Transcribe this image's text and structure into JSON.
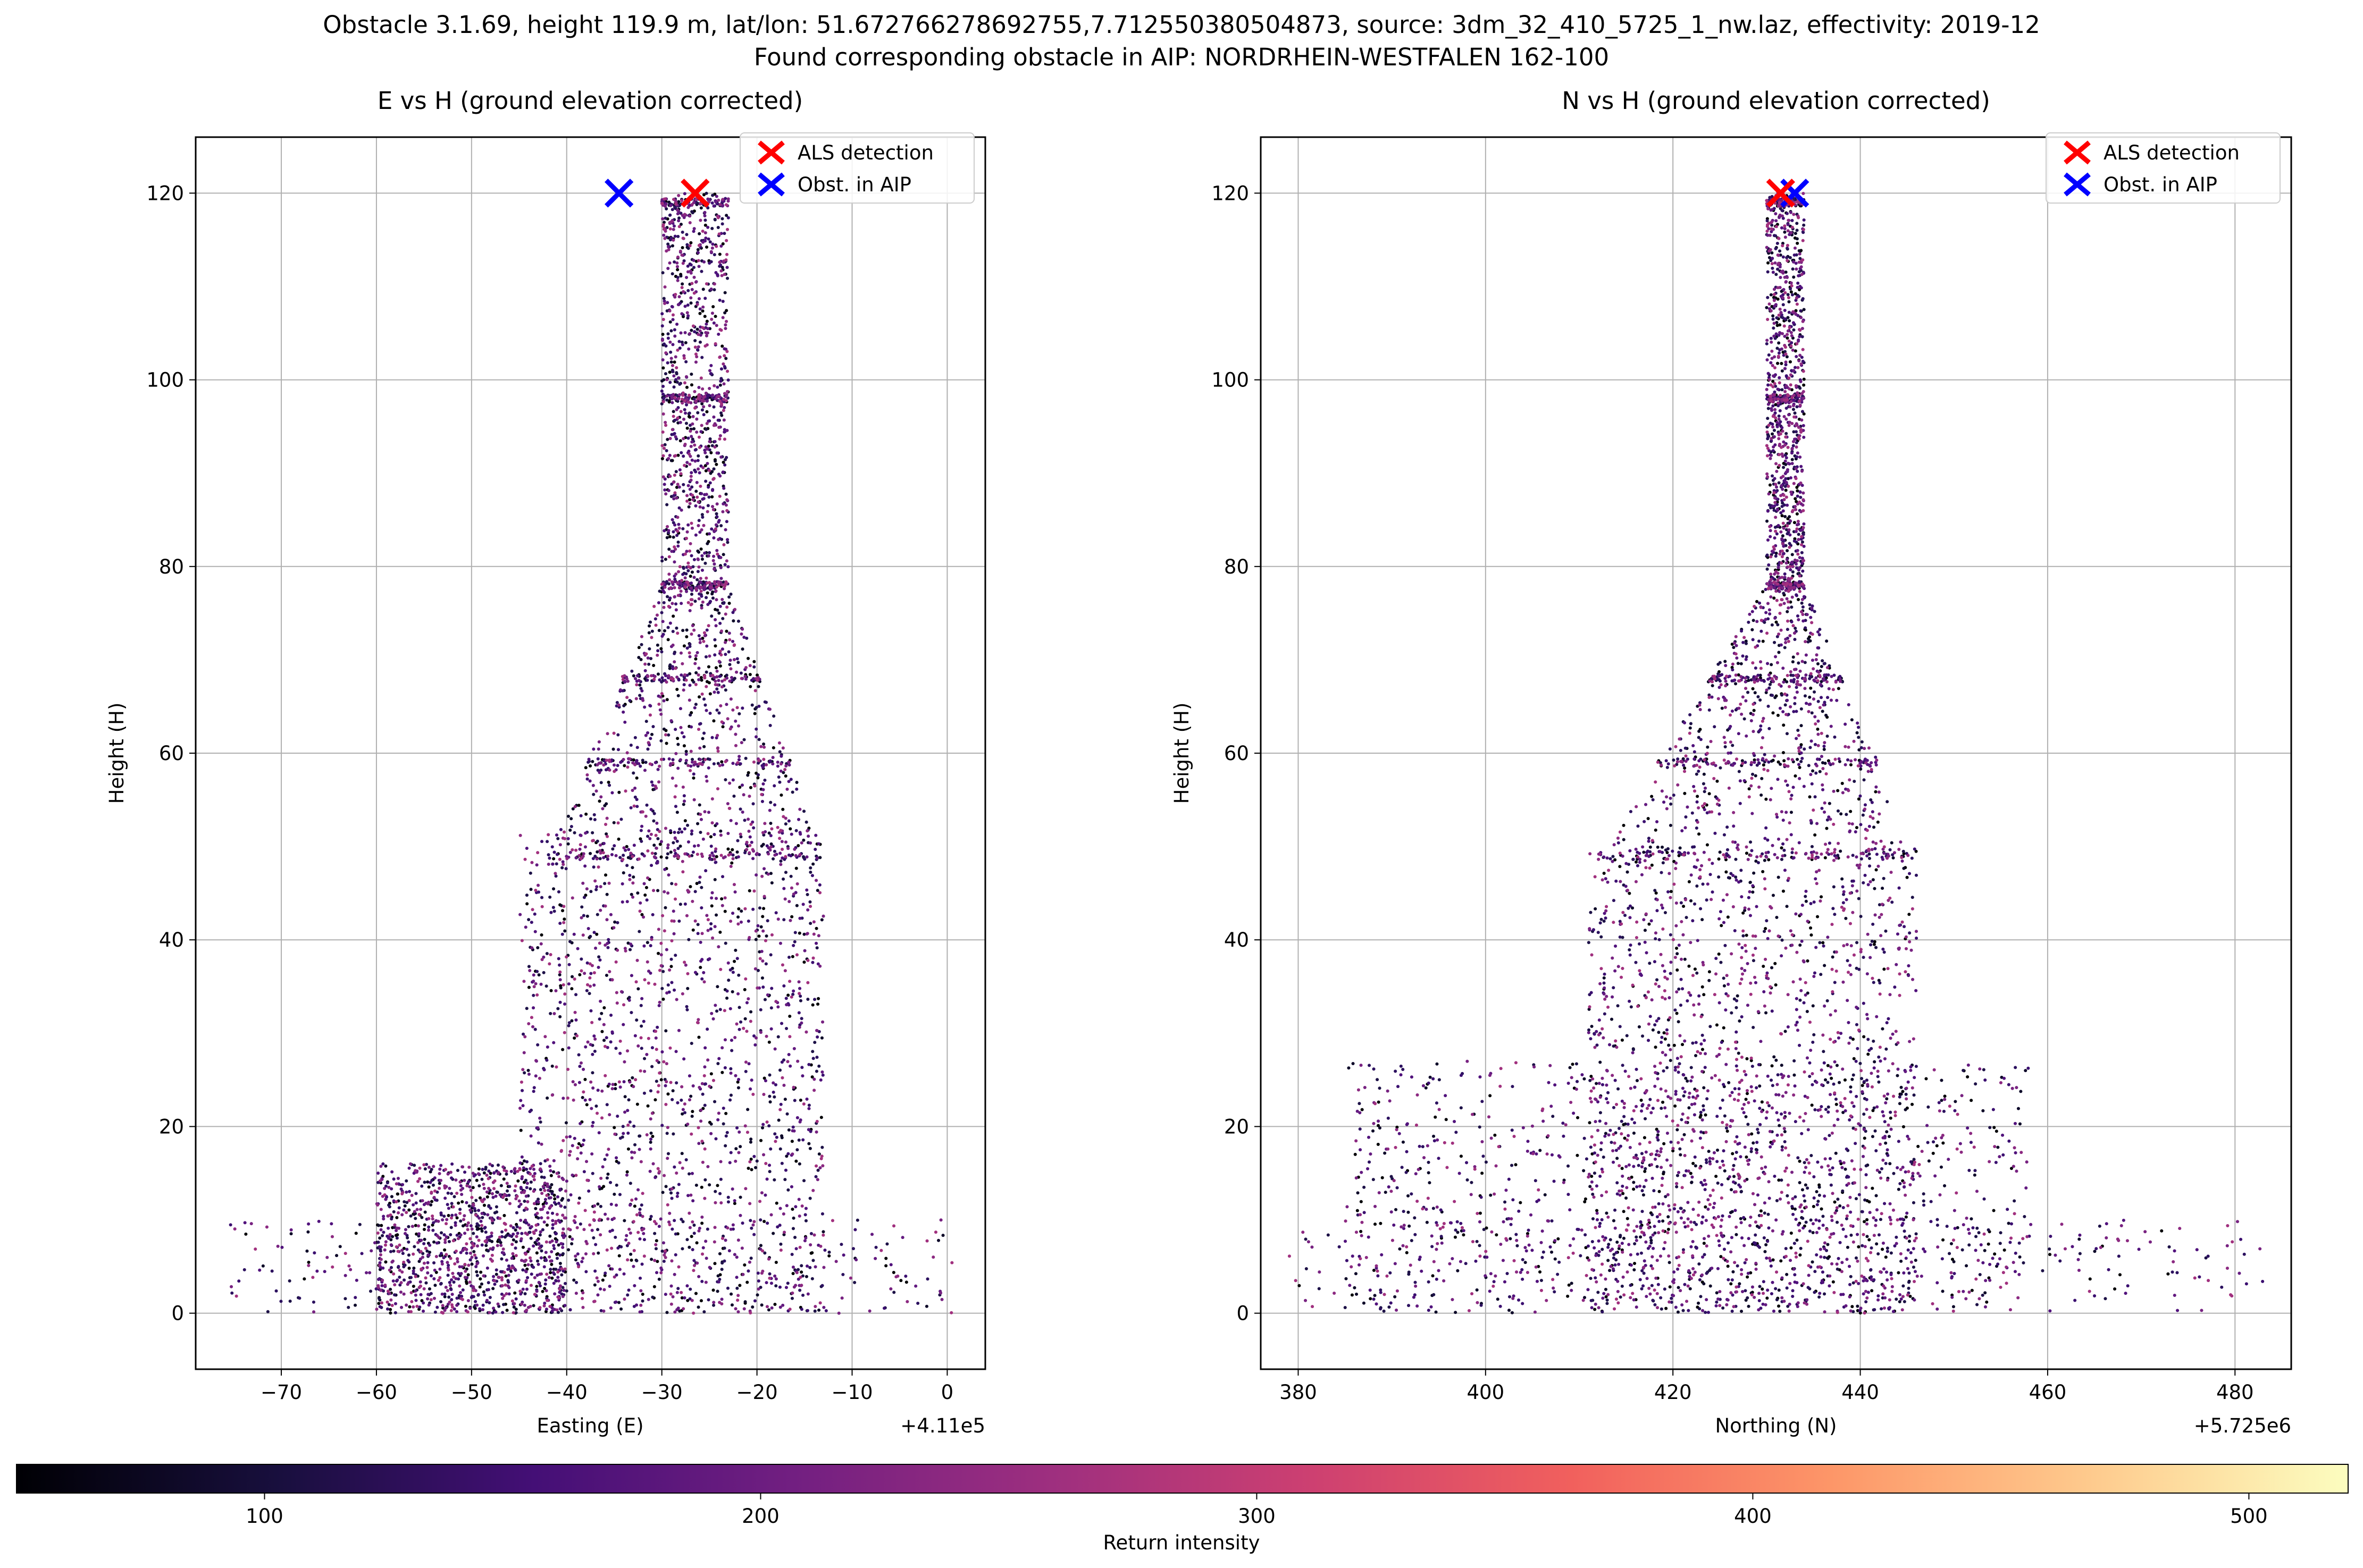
{
  "figure": {
    "title_line1": "Obstacle 3.1.69, height 119.9 m, lat/lon: 51.672766278692755,7.712550380504873, source: 3dm_32_410_5725_1_nw.laz, effectivity: 2019-12",
    "title_line2": "Found corresponding obstacle in AIP: NORDRHEIN-WESTFALEN 162-100"
  },
  "colors": {
    "als": "#ff0000",
    "aip": "#0000ff",
    "grid": "#b0b0b0",
    "cmap": [
      "#000004",
      "#180f3d",
      "#440f76",
      "#721f81",
      "#9e2f7f",
      "#cd4071",
      "#f1605d",
      "#fd9668",
      "#feca8d",
      "#fcfdbf"
    ]
  },
  "colorbar": {
    "label": "Return intensity",
    "range": [
      50,
      520
    ],
    "ticks": [
      "100",
      "200",
      "300",
      "400",
      "500"
    ]
  },
  "chart_data": [
    {
      "type": "scatter",
      "title": "E vs H (ground elevation corrected)",
      "xlabel": "Easting (E)",
      "ylabel": "Height (H)",
      "offset_label": "+4.11e5",
      "xlim": [
        -79,
        4
      ],
      "ylim": [
        -6,
        126
      ],
      "xticks": [
        "−70",
        "−60",
        "−50",
        "−40",
        "−30",
        "−20",
        "−10",
        "0"
      ],
      "yticks": [
        "0",
        "20",
        "40",
        "60",
        "80",
        "100",
        "120"
      ],
      "grid": true,
      "legend_position": "top-right",
      "legend": [
        "ALS detection",
        "Obst. in AIP"
      ],
      "markers": {
        "als": [
          -26.5,
          120
        ],
        "aip": [
          -34.5,
          120
        ]
      },
      "structure": {
        "mast_x": [
          -30,
          -23
        ],
        "mast_top": 120,
        "cone_base_x": [
          -42,
          -13
        ],
        "cone_y": [
          49,
          78
        ],
        "building_x": [
          -45,
          -13
        ],
        "building_y": [
          0,
          52
        ],
        "low_block_x": [
          -60,
          -40
        ],
        "low_block_y": [
          0,
          16
        ]
      }
    },
    {
      "type": "scatter",
      "title": "N vs H (ground elevation corrected)",
      "xlabel": "Northing (N)",
      "ylabel": "Height (H)",
      "offset_label": "+5.725e6",
      "xlim": [
        376,
        486
      ],
      "ylim": [
        -6,
        126
      ],
      "xticks": [
        "380",
        "400",
        "420",
        "440",
        "460",
        "480"
      ],
      "yticks": [
        "0",
        "20",
        "40",
        "60",
        "80",
        "100",
        "120"
      ],
      "grid": true,
      "legend_position": "top-right",
      "legend": [
        "ALS detection",
        "Obst. in AIP"
      ],
      "markers": {
        "als": [
          431.5,
          120
        ],
        "aip": [
          433,
          120
        ]
      },
      "structure": {
        "mast_x": [
          430,
          434
        ],
        "mast_top": 120,
        "cone_base_x": [
          412,
          446
        ],
        "cone_y": [
          49,
          78
        ],
        "building_x": [
          411,
          446
        ],
        "building_y": [
          0,
          50
        ],
        "low_block_x": [
          385,
          458
        ],
        "low_block_y": [
          0,
          27
        ]
      }
    }
  ]
}
